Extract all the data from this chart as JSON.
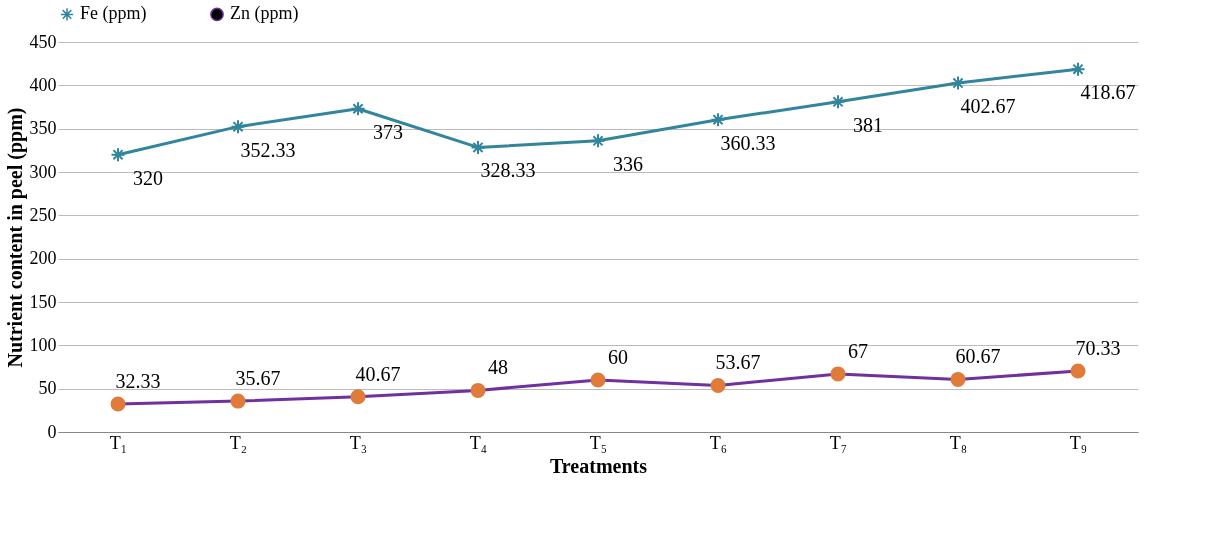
{
  "chart_data": {
    "type": "line",
    "xlabel": "Treatments",
    "ylabel": "Nutrient content in peel (ppm)",
    "categories": [
      "T₁",
      "T₂",
      "T₃",
      "T₄",
      "T₅",
      "T₆",
      "T₇",
      "T₈",
      "T₉"
    ],
    "series": [
      {
        "name": "Fe (ppm)",
        "color": "#31859c",
        "marker": "cross",
        "values": [
          320,
          352.33,
          373,
          328.33,
          336,
          360.33,
          381,
          402.67,
          418.67
        ]
      },
      {
        "name": "Zn (ppm)",
        "color": "#7030a0",
        "marker": "circle",
        "colors": [
          "#e07b39",
          "#e07b39",
          "#e07b39",
          "#e07b39",
          "#e07b39",
          "#e07b39",
          "#e07b39",
          "#e07b39",
          "#e07b39"
        ],
        "values": [
          32.33,
          35.67,
          40.67,
          48,
          60,
          53.67,
          67,
          60.67,
          70.33
        ]
      }
    ],
    "ylim": [
      0,
      450
    ],
    "yticks": [
      0,
      50,
      100,
      150,
      200,
      250,
      300,
      350,
      400,
      450
    ],
    "grid": "y",
    "legend": "top",
    "data_labels": true
  }
}
